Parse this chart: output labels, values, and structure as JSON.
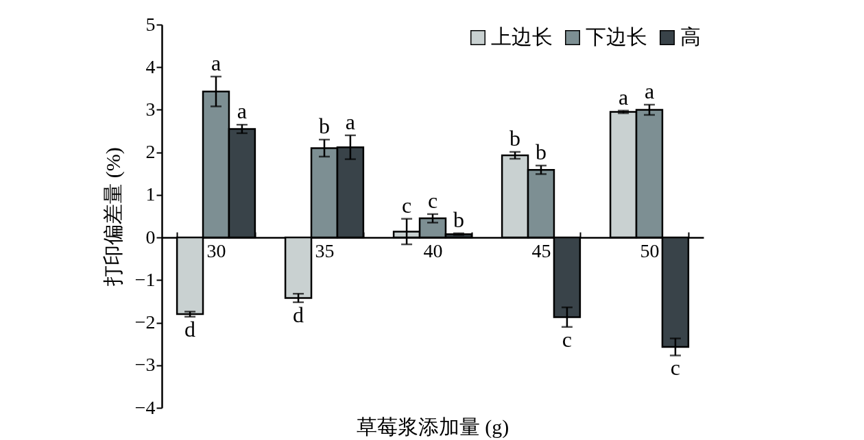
{
  "chart_data": {
    "type": "bar",
    "xlabel": "草莓浆添加量 (g)",
    "ylabel": "打印偏差量 (%)",
    "categories": [
      "30",
      "35",
      "40",
      "45",
      "50"
    ],
    "ylim": [
      -4,
      5
    ],
    "yticks": [
      -4,
      -3,
      -2,
      -1,
      0,
      1,
      2,
      3,
      4,
      5
    ],
    "legend": "top right",
    "series": [
      {
        "name": "上边长",
        "color": "#c9d1d1",
        "values": [
          -1.8,
          -1.42,
          0.14,
          1.93,
          2.95
        ],
        "errors": [
          0.06,
          0.1,
          0.3,
          0.08,
          0.03
        ],
        "value_labels": [
          "d",
          "d",
          "c",
          "b",
          "a"
        ]
      },
      {
        "name": "下边长",
        "color": "#7d8f93",
        "values": [
          3.43,
          2.1,
          0.45,
          1.59,
          3.0
        ],
        "errors": [
          0.35,
          0.2,
          0.1,
          0.1,
          0.12
        ],
        "value_labels": [
          "a",
          "b",
          "c",
          "b",
          "a"
        ]
      },
      {
        "name": "高",
        "color": "#394349",
        "values": [
          2.55,
          2.12,
          0.08,
          -1.87,
          -2.57
        ],
        "errors": [
          0.1,
          0.28,
          0.02,
          0.23,
          0.2
        ],
        "value_labels": [
          "a",
          "a",
          "b",
          "c",
          "c"
        ]
      }
    ]
  }
}
